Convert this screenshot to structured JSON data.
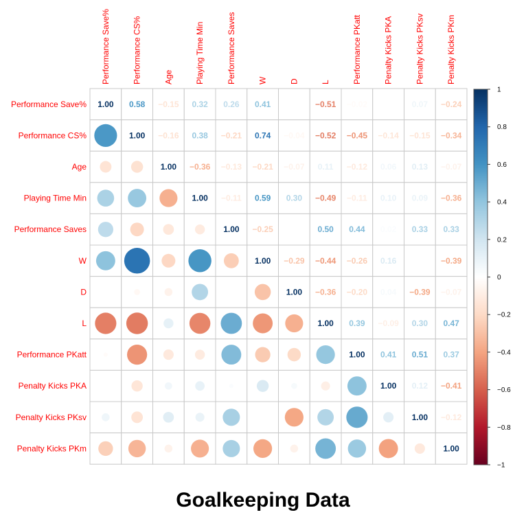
{
  "title": "Goalkeeping Data",
  "chart_data": {
    "type": "correlation-matrix",
    "variables": [
      "Performance Save%",
      "Performance CS%",
      "Age",
      "Playing Time Min",
      "Performance Saves",
      "W",
      "D",
      "L",
      "Performance PKatt",
      "Penalty Kicks PKA",
      "Penalty Kicks PKsv",
      "Penalty Kicks PKm"
    ],
    "matrix": [
      [
        1.0,
        0.58,
        -0.15,
        0.32,
        0.26,
        0.41,
        0.0,
        -0.51,
        -0.02,
        0.0,
        0.07,
        -0.24
      ],
      [
        0.58,
        1.0,
        -0.16,
        0.38,
        -0.21,
        0.74,
        -0.04,
        -0.52,
        -0.45,
        -0.14,
        -0.15,
        -0.34
      ],
      [
        -0.15,
        -0.16,
        1.0,
        -0.36,
        -0.13,
        -0.21,
        -0.07,
        0.11,
        -0.12,
        0.06,
        0.13,
        -0.07
      ],
      [
        0.32,
        0.38,
        -0.36,
        1.0,
        -0.11,
        0.59,
        0.3,
        -0.49,
        -0.11,
        0.1,
        0.09,
        -0.36
      ],
      [
        0.26,
        -0.21,
        -0.13,
        -0.11,
        1.0,
        -0.25,
        0.0,
        0.5,
        0.44,
        0.02,
        0.33,
        0.33
      ],
      [
        0.41,
        0.74,
        -0.21,
        0.59,
        -0.25,
        1.0,
        -0.29,
        -0.44,
        -0.26,
        0.16,
        0.0,
        -0.39
      ],
      [
        0.0,
        -0.04,
        -0.07,
        0.3,
        0.0,
        -0.29,
        1.0,
        -0.36,
        -0.2,
        0.04,
        -0.39,
        -0.07
      ],
      [
        -0.51,
        -0.52,
        0.11,
        -0.49,
        0.5,
        -0.44,
        -0.36,
        1.0,
        0.39,
        -0.09,
        0.3,
        0.47
      ],
      [
        -0.02,
        -0.45,
        -0.12,
        -0.11,
        0.44,
        -0.26,
        -0.2,
        0.39,
        1.0,
        0.41,
        0.51,
        0.37
      ],
      [
        0.0,
        -0.14,
        0.06,
        0.1,
        0.02,
        0.16,
        0.04,
        -0.09,
        0.41,
        1.0,
        0.12,
        -0.41
      ],
      [
        0.07,
        -0.15,
        0.13,
        0.09,
        0.33,
        0.0,
        -0.39,
        0.3,
        0.51,
        0.12,
        1.0,
        -0.12
      ],
      [
        -0.24,
        -0.34,
        -0.07,
        -0.36,
        0.33,
        -0.39,
        -0.07,
        0.47,
        0.37,
        -0.41,
        -0.12,
        1.0
      ]
    ],
    "upper_display": "number",
    "lower_display": "circle",
    "colorbar_ticks": [
      1,
      0.8,
      0.6,
      0.4,
      0.2,
      0,
      -0.2,
      -0.4,
      -0.6,
      -0.8,
      -1
    ],
    "colorbar_tick_labels": [
      "1",
      "0.8",
      "0.6",
      "0.4",
      "0.2",
      "0",
      "−0.2",
      "−0.4",
      "−0.6",
      "−0.8",
      "−1"
    ],
    "colorscale": [
      "#67001F",
      "#B2182B",
      "#D6604D",
      "#F4A582",
      "#FDDBC7",
      "#FFFFFF",
      "#D1E5F0",
      "#92C5DE",
      "#4393C3",
      "#2166AC",
      "#053061"
    ],
    "label_color": "#FF0000",
    "grid": true
  }
}
